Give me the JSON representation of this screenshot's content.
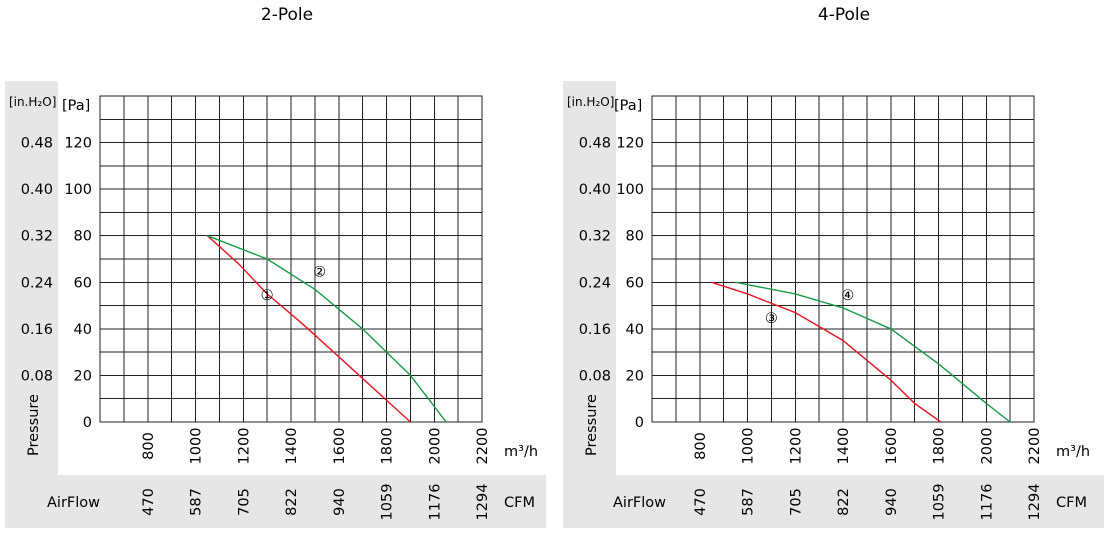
{
  "chart_data": [
    {
      "type": "line",
      "title": "2-Pole",
      "xlabel": "m³/h",
      "ylabel": "Pressure",
      "y_unit_primary": "[Pa]",
      "y_unit_secondary": "[in.H₂O]",
      "xlim": [
        600,
        2200
      ],
      "ylim": [
        0,
        130
      ],
      "y_ticks_pa": [
        "0",
        "20",
        "40",
        "60",
        "80",
        "100",
        "120"
      ],
      "y_ticks_inh2o": [
        "0.08",
        "0.16",
        "0.24",
        "0.32",
        "0.40",
        "0.48"
      ],
      "x_ticks": [
        "800",
        "1000",
        "1200",
        "1400",
        "1600",
        "1800",
        "2000",
        "2200"
      ],
      "airflow_label": "AirFlow",
      "airflow_unit": "CFM",
      "airflow_ticks": [
        "470",
        "587",
        "705",
        "822",
        "940",
        "1059",
        "1176",
        "1294"
      ],
      "grid": true,
      "series": [
        {
          "name": "①",
          "color": "#e8141e",
          "x": [
            1050,
            1180,
            1300,
            1450,
            1600,
            1750,
            1900
          ],
          "y": [
            80,
            68,
            55,
            42,
            28,
            14,
            0
          ]
        },
        {
          "name": "②",
          "color": "#1a9a4a",
          "x": [
            1050,
            1300,
            1500,
            1700,
            1900,
            2050
          ],
          "y": [
            80,
            70,
            57,
            40,
            20,
            0
          ]
        }
      ]
    },
    {
      "type": "line",
      "title": "4-Pole",
      "xlabel": "m³/h",
      "ylabel": "Pressure",
      "y_unit_primary": "[Pa]",
      "y_unit_secondary": "[in.H₂O]",
      "xlim": [
        600,
        2200
      ],
      "ylim": [
        0,
        130
      ],
      "y_ticks_pa": [
        "0",
        "20",
        "40",
        "60",
        "80",
        "100",
        "120"
      ],
      "y_ticks_inh2o": [
        "0.08",
        "0.16",
        "0.24",
        "0.32",
        "0.40",
        "0.48"
      ],
      "x_ticks": [
        "800",
        "1000",
        "1200",
        "1400",
        "1600",
        "1800",
        "2000",
        "2200"
      ],
      "airflow_label": "AirFlow",
      "airflow_unit": "CFM",
      "airflow_ticks": [
        "470",
        "587",
        "705",
        "822",
        "940",
        "1059",
        "1176",
        "1294"
      ],
      "grid": true,
      "series": [
        {
          "name": "③",
          "color": "#e8141e",
          "x": [
            850,
            1000,
            1200,
            1400,
            1600,
            1700,
            1810
          ],
          "y": [
            60,
            55,
            47,
            35,
            18,
            8,
            0
          ]
        },
        {
          "name": "④",
          "color": "#1a9a4a",
          "x": [
            950,
            1200,
            1400,
            1600,
            1800,
            2000,
            2100
          ],
          "y": [
            60,
            55,
            49,
            40,
            25,
            8,
            0
          ]
        }
      ]
    }
  ]
}
